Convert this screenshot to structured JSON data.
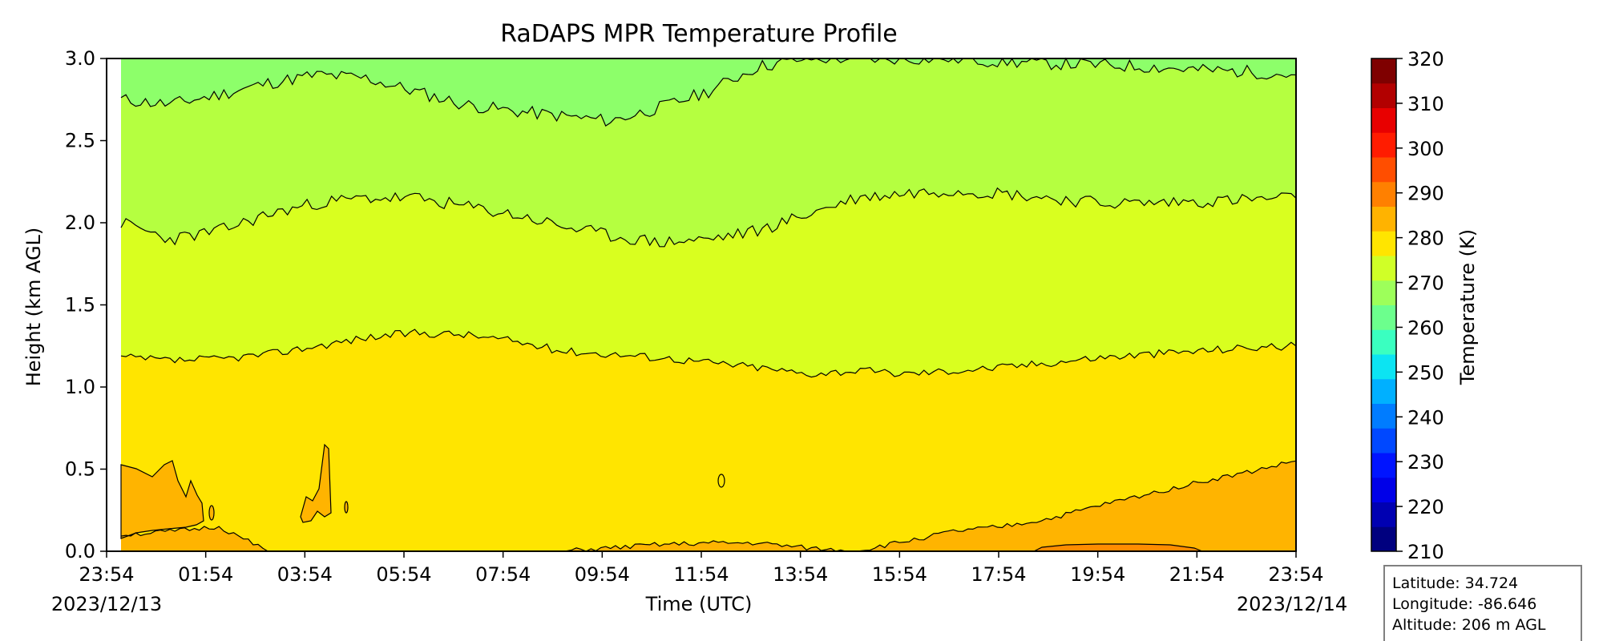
{
  "chart_data": {
    "type": "heatmap",
    "title": "RaDAPS MPR Temperature Profile",
    "xlabel": "Time (UTC)",
    "ylabel": "Height (km AGL)",
    "x_ticks": [
      "23:54",
      "01:54",
      "03:54",
      "05:54",
      "07:54",
      "09:54",
      "11:54",
      "13:54",
      "15:54",
      "17:54",
      "19:54",
      "21:54",
      "23:54"
    ],
    "start_date": "2023/12/13",
    "end_date": "2023/12/14",
    "ylim": [
      0,
      3.0
    ],
    "y_ticks": [
      "0.0",
      "0.5",
      "1.0",
      "1.5",
      "2.0",
      "2.5",
      "3.0"
    ],
    "colorbar": {
      "label": "Temperature (K)",
      "range": [
        210,
        320
      ],
      "tick_labels": [
        "210",
        "220",
        "230",
        "240",
        "250",
        "260",
        "270",
        "280",
        "290",
        "300",
        "310",
        "320"
      ],
      "step": 5,
      "colormap": [
        "#00007f",
        "#0000b2",
        "#0000e8",
        "#0014ff",
        "#0048ff",
        "#007cff",
        "#00b0ff",
        "#0ce4f2",
        "#3affc0",
        "#6cff8d",
        "#9dff5a",
        "#d0ff27",
        "#ffe500",
        "#ffb300",
        "#ff8000",
        "#ff4e00",
        "#ff1c00",
        "#e80000",
        "#b20000",
        "#7f0000"
      ]
    },
    "contour_bands_K": [
      {
        "range": [
          265,
          270
        ],
        "color": "#8dff6a",
        "region": "top, above ~2.7-3.0 km"
      },
      {
        "range": [
          270,
          275
        ],
        "color": "#b5ff40",
        "region": "~2.0-2.9 km"
      },
      {
        "range": [
          275,
          280
        ],
        "color": "#d9ff1f",
        "region": "~1.2-2.1 km"
      },
      {
        "range": [
          280,
          285
        ],
        "color": "#ffe500",
        "region": "surface to ~1.2 km"
      },
      {
        "range": [
          285,
          290
        ],
        "color": "#ffb400",
        "region": "near surface, early and late hours"
      },
      {
        "range": [
          290,
          295
        ],
        "color": "#ff8c00",
        "region": "thin near-surface patch ~19:54-21:54"
      }
    ],
    "contour_lines": [
      {
        "level_K": 270,
        "heights_km": [
          2.75,
          2.72,
          2.78,
          2.85,
          2.9,
          2.88,
          2.8,
          2.72,
          2.68,
          2.65,
          2.62,
          2.7,
          2.8,
          2.95,
          3.0,
          3.0,
          3.0,
          3.0,
          2.98,
          2.97,
          2.96,
          2.95,
          2.93,
          2.92,
          2.9
        ]
      },
      {
        "level_K": 275,
        "heights_km": [
          2.0,
          1.9,
          1.95,
          2.05,
          2.12,
          2.15,
          2.15,
          2.1,
          2.05,
          1.98,
          1.92,
          1.88,
          1.9,
          1.95,
          2.05,
          2.15,
          2.18,
          2.2,
          2.18,
          2.15,
          2.12,
          2.12,
          2.13,
          2.14,
          2.15
        ]
      },
      {
        "level_K": 280,
        "heights_km": [
          1.18,
          1.16,
          1.17,
          1.2,
          1.25,
          1.3,
          1.33,
          1.32,
          1.28,
          1.22,
          1.2,
          1.18,
          1.15,
          1.12,
          1.08,
          1.1,
          1.08,
          1.1,
          1.12,
          1.15,
          1.18,
          1.2,
          1.22,
          1.24,
          1.25
        ]
      },
      {
        "level_K": 285,
        "heights_km": [
          0.1,
          0.12,
          0.15,
          0.0,
          0.0,
          0.0,
          0.0,
          0.0,
          0.0,
          0.0,
          0.02,
          0.04,
          0.05,
          0.05,
          0.02,
          0.0,
          0.06,
          0.12,
          0.15,
          0.2,
          0.28,
          0.35,
          0.42,
          0.48,
          0.55
        ]
      }
    ],
    "grid": false,
    "legend": "none"
  },
  "info_box": {
    "latitude": "Latitude: 34.724",
    "longitude": "Longitude: -86.646",
    "altitude": "Altitude: 206 m AGL"
  }
}
